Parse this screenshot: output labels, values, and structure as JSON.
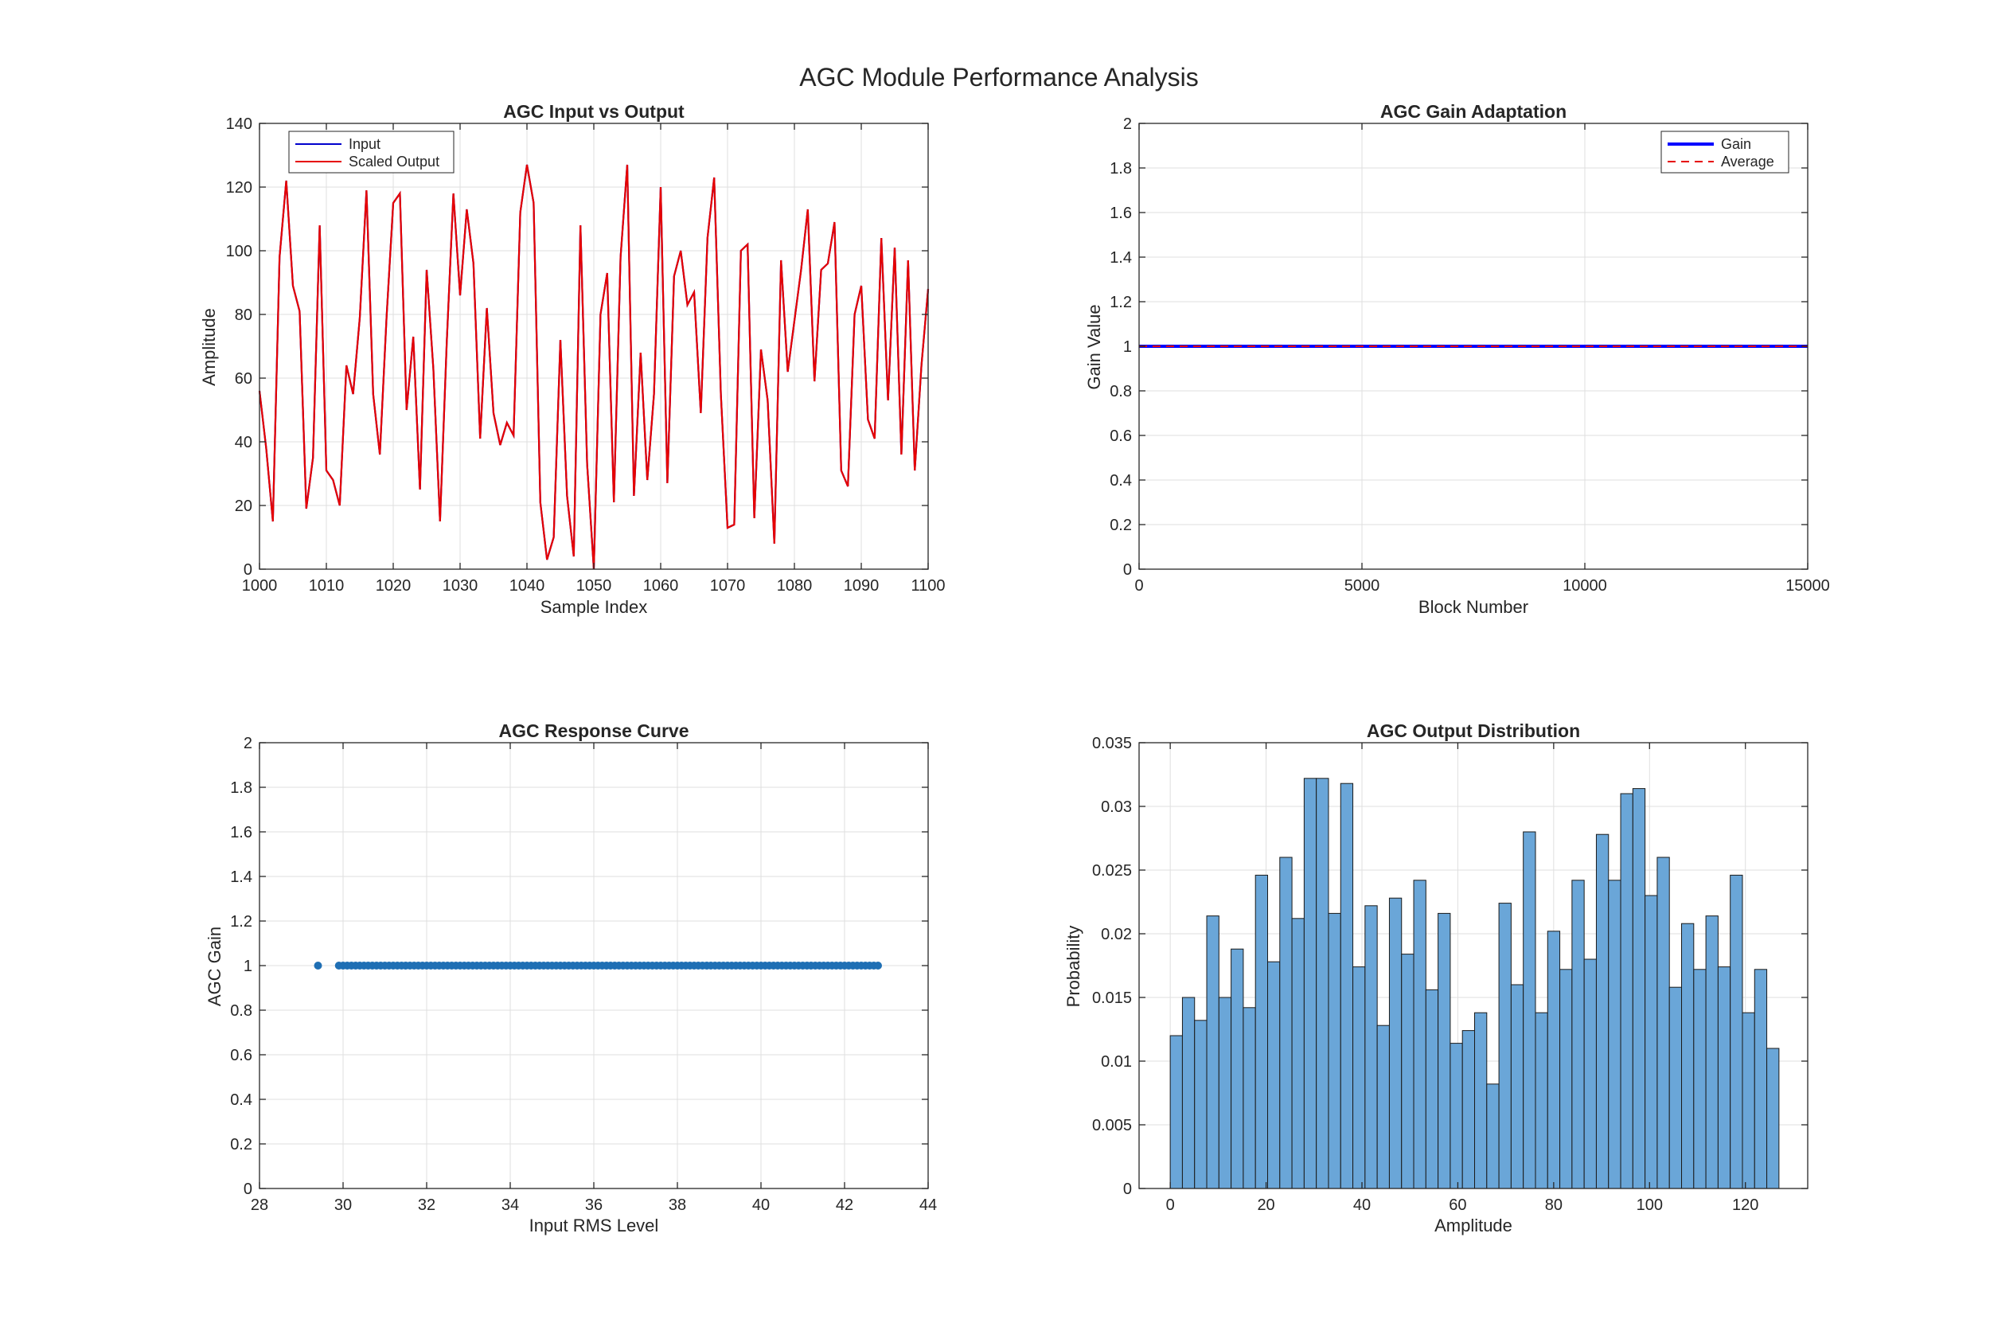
{
  "figure": {
    "title": "AGC Module Performance Analysis"
  },
  "chart_data": [
    {
      "id": "input_vs_output",
      "type": "line",
      "title": "AGC Input vs Output",
      "xlabel": "Sample Index",
      "ylabel": "Amplitude",
      "xlim": [
        1000,
        1100
      ],
      "ylim": [
        0,
        140
      ],
      "xticks": [
        1000,
        1010,
        1020,
        1030,
        1040,
        1050,
        1060,
        1070,
        1080,
        1090,
        1100
      ],
      "yticks": [
        0,
        20,
        40,
        60,
        80,
        100,
        120,
        140
      ],
      "grid": true,
      "legend_position": "top-left",
      "series": [
        {
          "name": "Input",
          "color": "#0000cc",
          "style": "solid",
          "x": [
            1000,
            1001,
            1002,
            1003,
            1004,
            1005,
            1006,
            1007,
            1008,
            1009,
            1010,
            1011,
            1012,
            1013,
            1014,
            1015,
            1016,
            1017,
            1018,
            1019,
            1020,
            1021,
            1022,
            1023,
            1024,
            1025,
            1026,
            1027,
            1028,
            1029,
            1030,
            1031,
            1032,
            1033,
            1034,
            1035,
            1036,
            1037,
            1038,
            1039,
            1040,
            1041,
            1042,
            1043,
            1044,
            1045,
            1046,
            1047,
            1048,
            1049,
            1050,
            1051,
            1052,
            1053,
            1054,
            1055,
            1056,
            1057,
            1058,
            1059,
            1060,
            1061,
            1062,
            1063,
            1064,
            1065,
            1066,
            1067,
            1068,
            1069,
            1070,
            1071,
            1072,
            1073,
            1074,
            1075,
            1076,
            1077,
            1078,
            1079,
            1080,
            1081,
            1082,
            1083,
            1084,
            1085,
            1086,
            1087,
            1088,
            1089,
            1090,
            1091,
            1092,
            1093,
            1094,
            1095,
            1096,
            1097,
            1098,
            1099,
            1100
          ],
          "y": [
            56,
            38,
            15,
            98,
            122,
            89,
            81,
            19,
            35,
            108,
            31,
            28,
            20,
            64,
            55,
            79,
            119,
            55,
            36,
            79,
            115,
            118,
            50,
            73,
            25,
            94,
            63,
            15,
            71,
            118,
            86,
            113,
            96,
            41,
            82,
            49,
            39,
            46,
            42,
            112,
            127,
            115,
            21,
            3,
            10,
            72,
            23,
            4,
            108,
            33,
            0,
            80,
            93,
            21,
            98,
            127,
            23,
            68,
            28,
            55,
            120,
            27,
            92,
            100,
            83,
            87,
            49,
            104,
            123,
            55,
            13,
            14,
            100,
            102,
            16,
            69,
            53,
            8,
            97,
            62,
            78,
            94,
            113,
            59,
            94,
            96,
            109,
            31,
            26,
            80,
            89,
            47,
            41,
            104,
            53,
            101,
            36,
            97,
            31,
            64,
            88
          ]
        },
        {
          "name": "Scaled Output",
          "color": "#e60000",
          "style": "solid",
          "x": [
            1000,
            1001,
            1002,
            1003,
            1004,
            1005,
            1006,
            1007,
            1008,
            1009,
            1010,
            1011,
            1012,
            1013,
            1014,
            1015,
            1016,
            1017,
            1018,
            1019,
            1020,
            1021,
            1022,
            1023,
            1024,
            1025,
            1026,
            1027,
            1028,
            1029,
            1030,
            1031,
            1032,
            1033,
            1034,
            1035,
            1036,
            1037,
            1038,
            1039,
            1040,
            1041,
            1042,
            1043,
            1044,
            1045,
            1046,
            1047,
            1048,
            1049,
            1050,
            1051,
            1052,
            1053,
            1054,
            1055,
            1056,
            1057,
            1058,
            1059,
            1060,
            1061,
            1062,
            1063,
            1064,
            1065,
            1066,
            1067,
            1068,
            1069,
            1070,
            1071,
            1072,
            1073,
            1074,
            1075,
            1076,
            1077,
            1078,
            1079,
            1080,
            1081,
            1082,
            1083,
            1084,
            1085,
            1086,
            1087,
            1088,
            1089,
            1090,
            1091,
            1092,
            1093,
            1094,
            1095,
            1096,
            1097,
            1098,
            1099,
            1100
          ],
          "y": [
            56,
            38,
            15,
            98,
            122,
            89,
            81,
            19,
            35,
            108,
            31,
            28,
            20,
            64,
            55,
            79,
            119,
            55,
            36,
            79,
            115,
            118,
            50,
            73,
            25,
            94,
            63,
            15,
            71,
            118,
            86,
            113,
            96,
            41,
            82,
            49,
            39,
            46,
            42,
            112,
            127,
            115,
            21,
            3,
            10,
            72,
            23,
            4,
            108,
            33,
            0,
            80,
            93,
            21,
            98,
            127,
            23,
            68,
            28,
            55,
            120,
            27,
            92,
            100,
            83,
            87,
            49,
            104,
            123,
            55,
            13,
            14,
            100,
            102,
            16,
            69,
            53,
            8,
            97,
            62,
            78,
            94,
            113,
            59,
            94,
            96,
            109,
            31,
            26,
            80,
            89,
            47,
            41,
            104,
            53,
            101,
            36,
            97,
            31,
            64,
            88
          ]
        }
      ]
    },
    {
      "id": "gain_adaptation",
      "type": "line",
      "title": "AGC Gain Adaptation",
      "xlabel": "Block Number",
      "ylabel": "Gain Value",
      "xlim": [
        0,
        15000
      ],
      "ylim": [
        0,
        2
      ],
      "xticks": [
        0,
        5000,
        10000,
        15000
      ],
      "yticks": [
        0,
        0.2,
        0.4,
        0.6,
        0.8,
        1,
        1.2,
        1.4,
        1.6,
        1.8,
        2
      ],
      "grid": true,
      "legend_position": "top-right",
      "series": [
        {
          "name": "Gain",
          "color": "#0000ff",
          "style": "solid-thick",
          "x": [
            0,
            15000
          ],
          "y": [
            1,
            1
          ]
        },
        {
          "name": "Average",
          "color": "#e60000",
          "style": "dashed",
          "x": [
            0,
            15000
          ],
          "y": [
            1,
            1
          ]
        }
      ]
    },
    {
      "id": "response_curve",
      "type": "scatter",
      "title": "AGC Response Curve",
      "xlabel": "Input RMS Level",
      "ylabel": "AGC Gain",
      "xlim": [
        28,
        44
      ],
      "ylim": [
        0,
        2
      ],
      "xticks": [
        28,
        30,
        32,
        34,
        36,
        38,
        40,
        42,
        44
      ],
      "yticks": [
        0,
        0.2,
        0.4,
        0.6,
        0.8,
        1,
        1.2,
        1.4,
        1.6,
        1.8,
        2
      ],
      "grid": true,
      "color": "#1f6fb4",
      "points_x": [
        29.4,
        29.9,
        30.0,
        30.1,
        30.2,
        30.3,
        30.4,
        30.5,
        30.6,
        30.7,
        30.8,
        30.9,
        31.0,
        31.1,
        31.2,
        31.3,
        31.4,
        31.5,
        31.6,
        31.7,
        31.8,
        31.9,
        32.0,
        32.1,
        32.2,
        32.3,
        32.4,
        32.5,
        32.6,
        32.7,
        32.8,
        32.9,
        33.0,
        33.1,
        33.2,
        33.3,
        33.4,
        33.5,
        33.6,
        33.7,
        33.8,
        33.9,
        34.0,
        34.1,
        34.2,
        34.3,
        34.4,
        34.5,
        34.6,
        34.7,
        34.8,
        34.9,
        35.0,
        35.1,
        35.2,
        35.3,
        35.4,
        35.5,
        35.6,
        35.7,
        35.8,
        35.9,
        36.0,
        36.1,
        36.2,
        36.3,
        36.4,
        36.5,
        36.6,
        36.7,
        36.8,
        36.9,
        37.0,
        37.1,
        37.2,
        37.3,
        37.4,
        37.5,
        37.6,
        37.7,
        37.8,
        37.9,
        38.0,
        38.1,
        38.2,
        38.3,
        38.4,
        38.5,
        38.6,
        38.7,
        38.8,
        38.9,
        39.0,
        39.1,
        39.2,
        39.3,
        39.4,
        39.5,
        39.6,
        39.7,
        39.8,
        39.9,
        40.0,
        40.1,
        40.2,
        40.3,
        40.4,
        40.5,
        40.6,
        40.7,
        40.8,
        40.9,
        41.0,
        41.1,
        41.2,
        41.3,
        41.4,
        41.5,
        41.6,
        41.7,
        41.8,
        41.9,
        42.0,
        42.1,
        42.2,
        42.3,
        42.4,
        42.5,
        42.6,
        42.7,
        42.8
      ],
      "gain_value": 1
    },
    {
      "id": "output_distribution",
      "type": "bar",
      "title": "AGC Output Distribution",
      "xlabel": "Amplitude",
      "ylabel": "Probability",
      "xlim": [
        -6.5,
        133
      ],
      "ylim": [
        0,
        0.035
      ],
      "xticks": [
        0,
        20,
        40,
        60,
        80,
        100,
        120
      ],
      "yticks": [
        0,
        0.005,
        0.01,
        0.015,
        0.02,
        0.025,
        0.03,
        0.035
      ],
      "ytick_labels": [
        "0",
        "0.005",
        "0.01",
        "0.015",
        "0.02",
        "0.025",
        "0.03",
        "0.035"
      ],
      "grid": true,
      "color": "#6aa6d8",
      "edge_color": "#1a1a1a",
      "bin_start": 0,
      "bin_width": 2.54,
      "values": [
        0.012,
        0.015,
        0.0132,
        0.0214,
        0.015,
        0.0188,
        0.0142,
        0.0246,
        0.0178,
        0.026,
        0.0212,
        0.0322,
        0.0322,
        0.0216,
        0.0318,
        0.0174,
        0.0222,
        0.0128,
        0.0228,
        0.0184,
        0.0242,
        0.0156,
        0.0216,
        0.0114,
        0.0124,
        0.0138,
        0.0082,
        0.0224,
        0.016,
        0.028,
        0.0138,
        0.0202,
        0.0172,
        0.0242,
        0.018,
        0.0278,
        0.0242,
        0.031,
        0.0314,
        0.023,
        0.026,
        0.0158,
        0.0208,
        0.0172,
        0.0214,
        0.0174,
        0.0246,
        0.0138,
        0.0172,
        0.011
      ]
    }
  ]
}
